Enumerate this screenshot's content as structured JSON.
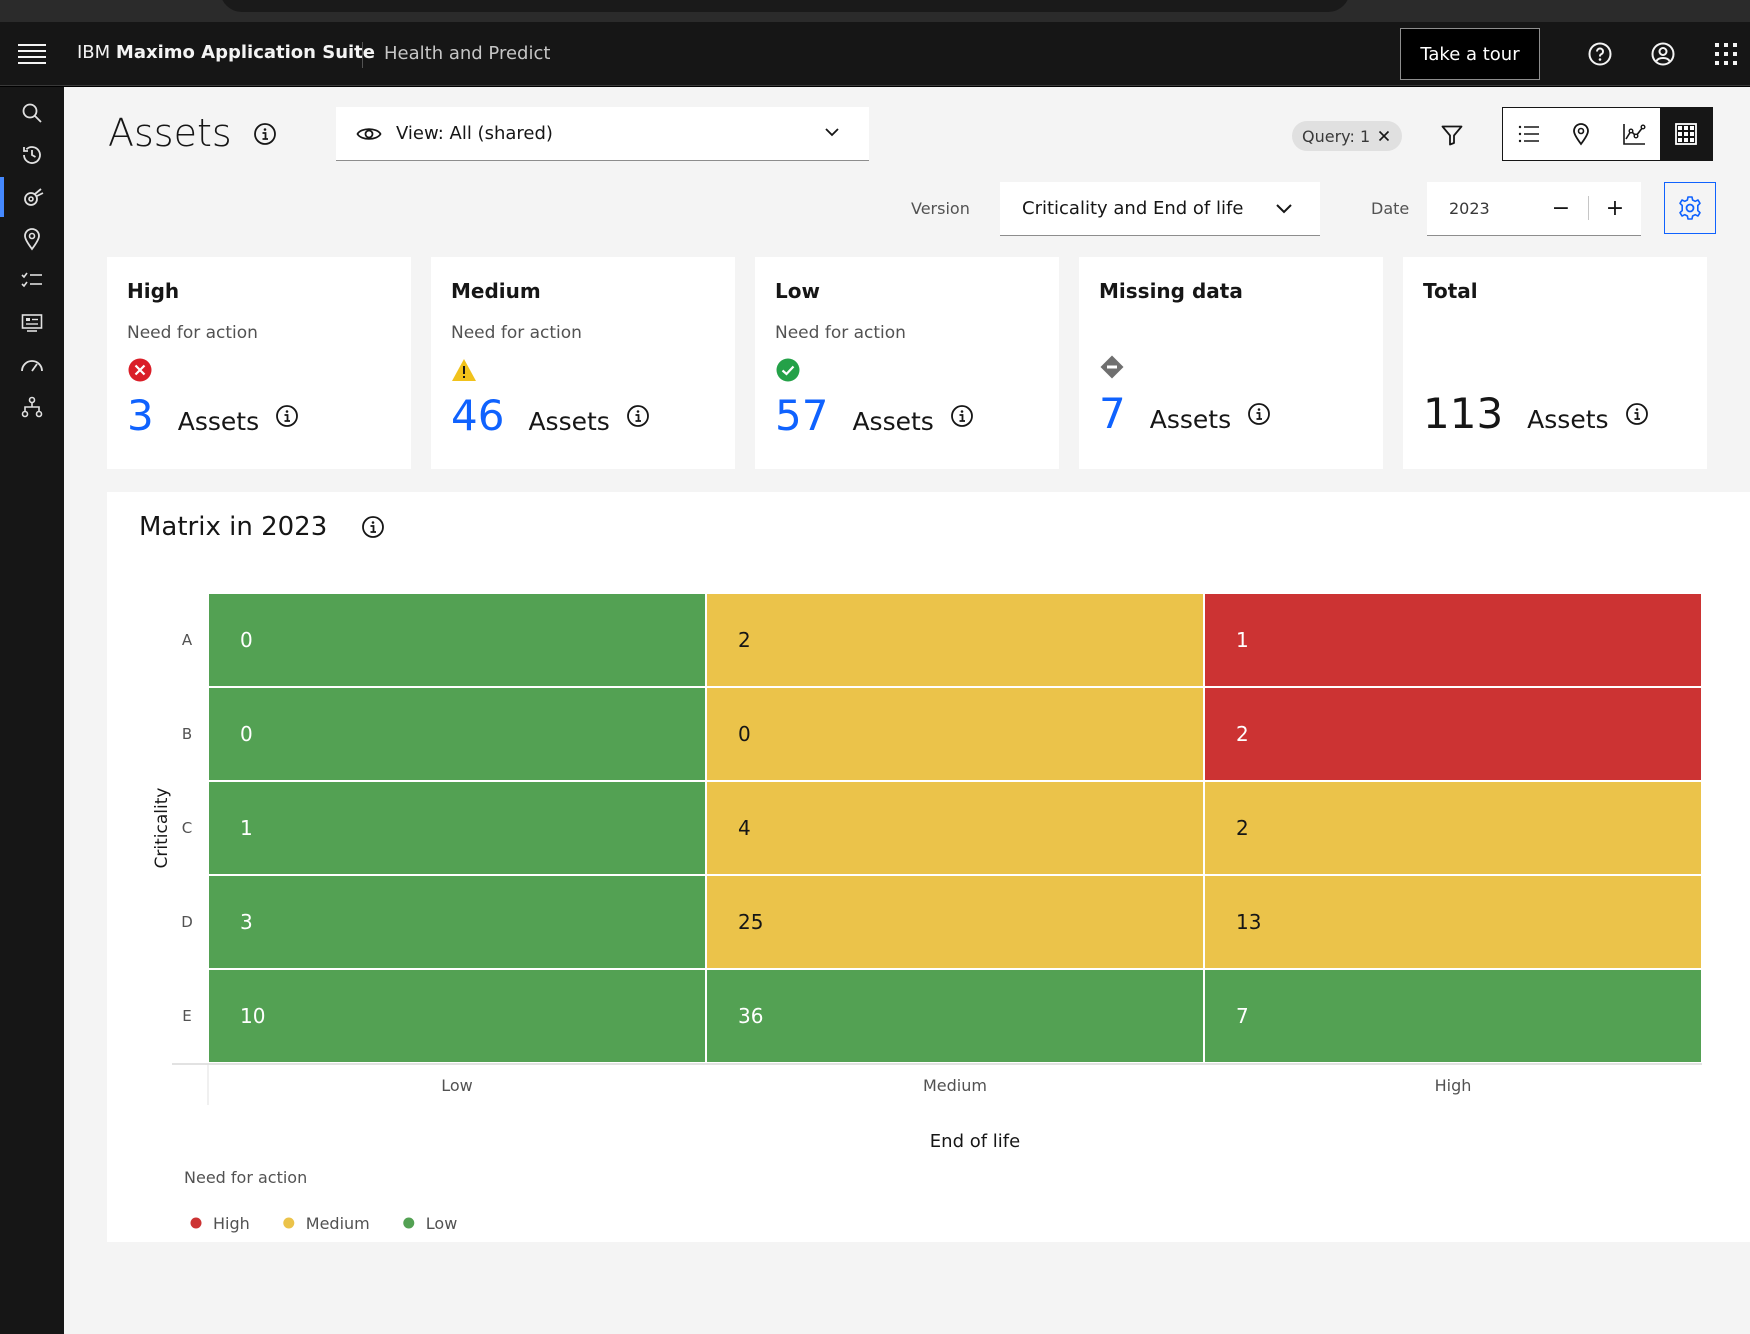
{
  "header": {
    "brand_ibm": "IBM",
    "brand_suite": "Maximo Application Suite",
    "app_name": "Health and Predict",
    "tour_label": "Take a tour"
  },
  "page": {
    "title": "Assets",
    "view_label": "View: All (shared)",
    "query_label": "Query: 1",
    "version_label": "Version",
    "version_value": "Criticality and End of life",
    "date_label": "Date",
    "date_value": "2023"
  },
  "cards": [
    {
      "title": "High",
      "subtitle": "Need for action",
      "count": "3",
      "unit": "Assets",
      "icon": "error-icon",
      "color": "#0f62fe"
    },
    {
      "title": "Medium",
      "subtitle": "Need for action",
      "count": "46",
      "unit": "Assets",
      "icon": "warning-icon",
      "color": "#0f62fe"
    },
    {
      "title": "Low",
      "subtitle": "Need for action",
      "count": "57",
      "unit": "Assets",
      "icon": "checkmark-icon",
      "color": "#0f62fe"
    },
    {
      "title": "Missing data",
      "subtitle": "",
      "count": "7",
      "unit": "Assets",
      "icon": "missing-diamond-icon",
      "color": "#0f62fe"
    },
    {
      "title": "Total",
      "subtitle": "",
      "count": "113",
      "unit": "Assets",
      "icon": "",
      "color": "#161616"
    }
  ],
  "colors": {
    "high": "#cc3333",
    "medium": "#ebc34a",
    "low": "#53a153",
    "accent": "#0f62fe"
  },
  "chart_data": {
    "type": "heatmap",
    "title": "Matrix in 2023",
    "xlabel": "End of life",
    "ylabel": "Criticality",
    "x_categories": [
      "Low",
      "Medium",
      "High"
    ],
    "y_categories": [
      "A",
      "B",
      "C",
      "D",
      "E"
    ],
    "values": [
      [
        0,
        2,
        1
      ],
      [
        0,
        0,
        2
      ],
      [
        1,
        4,
        2
      ],
      [
        3,
        25,
        13
      ],
      [
        10,
        36,
        7
      ]
    ],
    "cell_levels": [
      [
        "low",
        "medium",
        "high"
      ],
      [
        "low",
        "medium",
        "high"
      ],
      [
        "low",
        "medium",
        "medium"
      ],
      [
        "low",
        "medium",
        "medium"
      ],
      [
        "low",
        "low",
        "low"
      ]
    ],
    "legend_title": "Need for action",
    "legend": [
      {
        "name": "High",
        "level": "high"
      },
      {
        "name": "Medium",
        "level": "medium"
      },
      {
        "name": "Low",
        "level": "low"
      }
    ],
    "legend_position": "bottom-left"
  }
}
